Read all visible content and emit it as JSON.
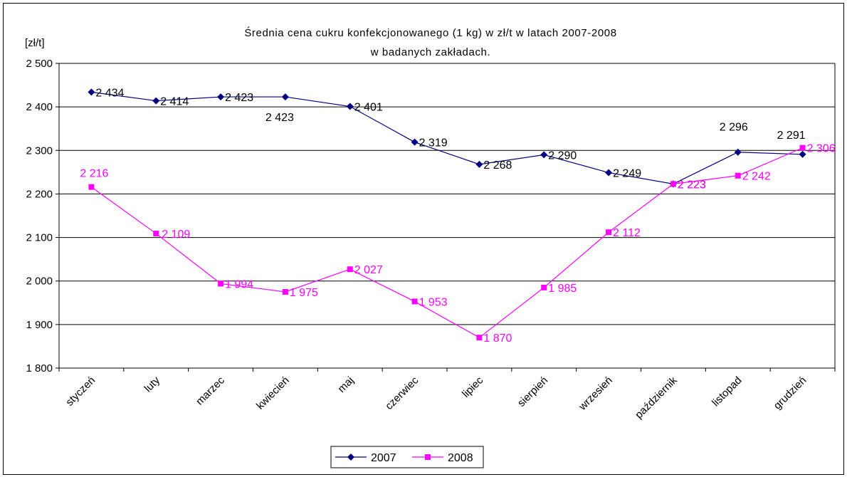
{
  "chart_data": {
    "type": "line",
    "title": "Średnia cena cukru konfekcjonowanego (1 kg) w zł/t w latach 2007-2008",
    "subtitle": "w badanych zakładach.",
    "ylabel": "[zł/t]",
    "xlabel": "",
    "ylim": [
      1800,
      2500
    ],
    "yticks": [
      1800,
      1900,
      2000,
      2100,
      2200,
      2300,
      2400,
      2500
    ],
    "ytick_labels": [
      "1 800",
      "1 900",
      "2 000",
      "2 100",
      "2 200",
      "2 300",
      "2 400",
      "2 500"
    ],
    "categories": [
      "styczeń",
      "luty",
      "marzec",
      "kwiecień",
      "maj",
      "czerwiec",
      "lipiec",
      "sierpień",
      "wrzesień",
      "październik",
      "listopad",
      "grudzień"
    ],
    "grid": true,
    "legend_position": "bottom",
    "series": [
      {
        "name": "2007",
        "color": "#000080",
        "marker": "diamond",
        "values": [
          2434,
          2414,
          2423,
          2423,
          2401,
          2319,
          2268,
          2290,
          2249,
          2223,
          2296,
          2291
        ],
        "labels": [
          "2 434",
          "2 414",
          "2 423",
          "2 423",
          "2 401",
          "2 319",
          "2 268",
          "2 290",
          "2 249",
          "2 223",
          "2 296",
          "2 291"
        ]
      },
      {
        "name": "2008",
        "color": "#ff00ff",
        "marker": "square",
        "values": [
          2216,
          2109,
          1994,
          1975,
          2027,
          1953,
          1870,
          1985,
          2112,
          2223,
          2242,
          2306
        ],
        "labels": [
          "2 216",
          "2 109",
          "1 994",
          "1 975",
          "2 027",
          "1 953",
          "1 870",
          "1 985",
          "2 112",
          "2 223",
          "2 242",
          "2 306"
        ]
      }
    ]
  }
}
